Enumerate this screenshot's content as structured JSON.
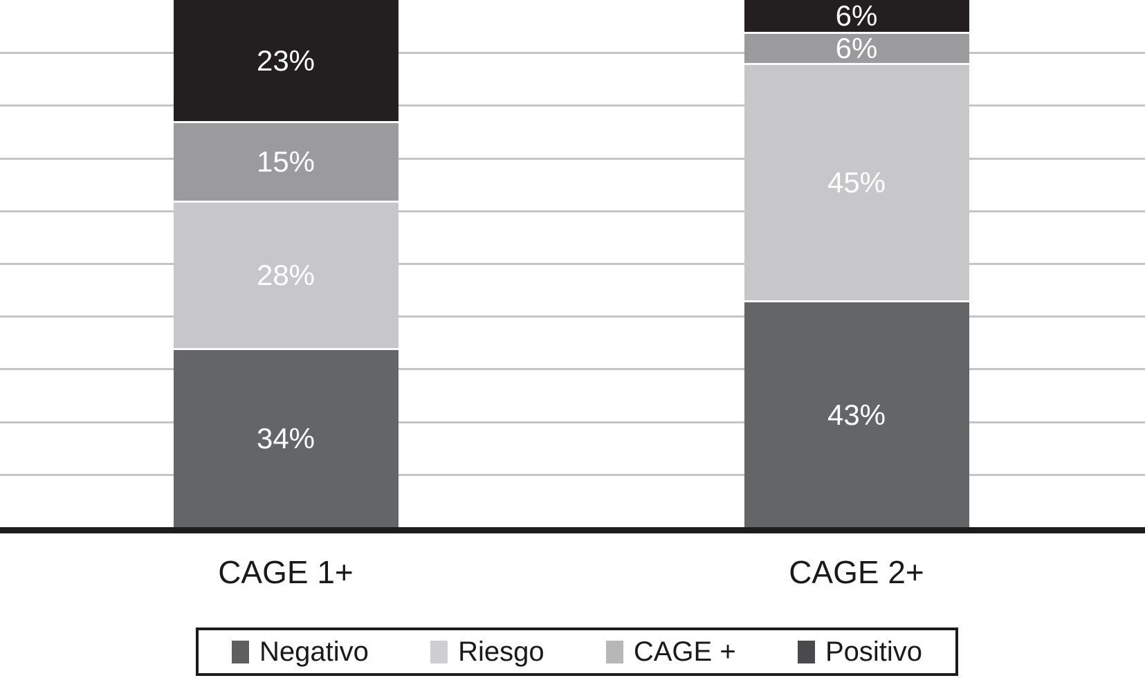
{
  "chart_data": {
    "type": "bar",
    "stacked": true,
    "percent_stacked": true,
    "title": "",
    "xlabel": "",
    "ylabel": "",
    "ylim": [
      0,
      100
    ],
    "unit": "%",
    "gridlines": {
      "visible": true,
      "step": 10,
      "color": "#c5c5c7"
    },
    "legend_position": "bottom",
    "categories": [
      "CAGE 1+",
      "CAGE 2+"
    ],
    "series": [
      {
        "name": "Negativo",
        "color": "#646567",
        "values": [
          34,
          43
        ]
      },
      {
        "name": "Riesgo",
        "color": "#c7c7c9",
        "values": [
          28,
          45
        ]
      },
      {
        "name": "CAGE +",
        "color": "#9b9b9d",
        "values": [
          15,
          6
        ]
      },
      {
        "name": "Positivo",
        "color": "#231f20",
        "values": [
          23,
          6
        ]
      }
    ],
    "stack_order_bottom_to_top": [
      "Negativo",
      "Riesgo",
      "CAGE +",
      "Positivo"
    ],
    "data_labels": {
      "CAGE 1+": [
        "34%",
        "28%",
        "15%",
        "23%"
      ],
      "CAGE 2+": [
        "43%",
        "45%",
        "6%",
        "6%"
      ],
      "color": "#ffffff"
    }
  },
  "legend": {
    "items": [
      {
        "label": "Negativo",
        "swatch_color": "#5f5f61"
      },
      {
        "label": "Riesgo",
        "swatch_color": "#cfcfd1"
      },
      {
        "label": "CAGE +",
        "swatch_color": "#b7b7b9"
      },
      {
        "label": "Positivo",
        "swatch_color": "#4a4a4c"
      }
    ]
  },
  "colors": {
    "background": "#ffffff",
    "axis_line": "#1c1c1e",
    "gridline": "#c5c5c7",
    "text": "#1a1a1a"
  }
}
